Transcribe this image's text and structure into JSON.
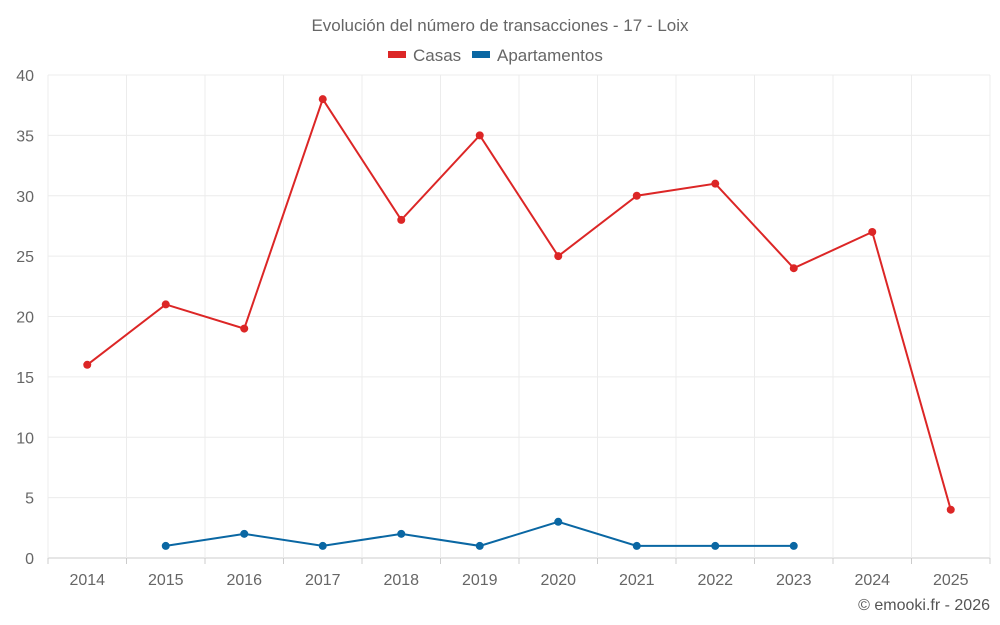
{
  "chart_data": {
    "type": "line",
    "title": "Evolución del número de transacciones - 17 - Loix",
    "categories": [
      "2014",
      "2015",
      "2016",
      "2017",
      "2018",
      "2019",
      "2020",
      "2021",
      "2022",
      "2023",
      "2024",
      "2025"
    ],
    "series": [
      {
        "name": "Casas",
        "color": "#dc2626",
        "values": [
          16,
          21,
          19,
          38,
          28,
          35,
          25,
          30,
          31,
          24,
          27,
          4
        ]
      },
      {
        "name": "Apartamentos",
        "color": "#0a67a3",
        "values": [
          null,
          1,
          2,
          1,
          2,
          1,
          3,
          1,
          1,
          1,
          null,
          null
        ]
      }
    ],
    "ylim": [
      0,
      40
    ],
    "yticks": [
      "0",
      "5",
      "10",
      "15",
      "20",
      "25",
      "30",
      "35",
      "40"
    ],
    "xlabel": "",
    "ylabel": "",
    "grid": true,
    "legend": "top-center"
  },
  "credit": "© emooki.fr - 2026"
}
